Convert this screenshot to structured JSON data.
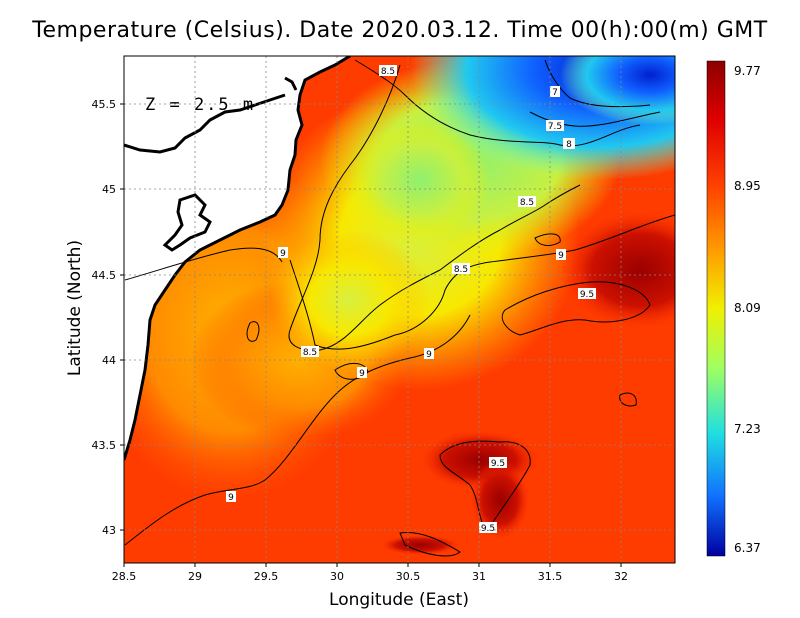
{
  "title": "Temperature (Celsius). Date 2020.03.12. Time 00(h):00(m)  GMT",
  "depth_label": "Z  =  2.5  m",
  "axes": {
    "xlabel": "Longitude (East)",
    "ylabel": "Latitude (North)",
    "xticks": [
      "28.5",
      "29",
      "29.5",
      "30",
      "30.5",
      "31",
      "31.5",
      "32"
    ],
    "yticks": [
      "43",
      "43.5",
      "44",
      "44.5",
      "45",
      "45.5"
    ]
  },
  "colorbar": {
    "labels": [
      "9.77",
      "8.95",
      "8.09",
      "7.23",
      "6.37"
    ],
    "min": 6.37,
    "max": 9.77
  },
  "contour_labels": [
    "8.5",
    "7",
    "7.5",
    "8",
    "8.5",
    "9",
    "8.5",
    "9",
    "9.5",
    "8.5",
    "9",
    "9",
    "9.5",
    "9",
    "9.5"
  ],
  "colors": {
    "land": "#ffffff",
    "coast": "#000000",
    "warm": "#ff3a00",
    "cold": "#1010c8"
  }
}
